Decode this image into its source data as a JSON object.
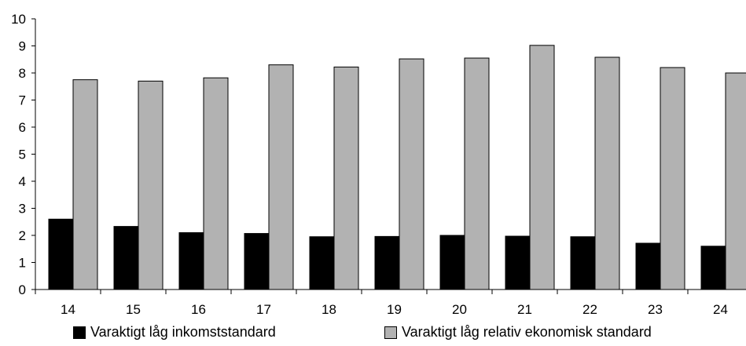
{
  "chart_data": {
    "type": "bar",
    "categories": [
      "14",
      "15",
      "16",
      "17",
      "18",
      "19",
      "20",
      "21",
      "22",
      "23",
      "24"
    ],
    "series": [
      {
        "name": "Varaktigt låg inkomststandard",
        "color": "#000000",
        "values": [
          2.6,
          2.33,
          2.1,
          2.07,
          1.95,
          1.96,
          2.0,
          1.97,
          1.95,
          1.71,
          1.6
        ]
      },
      {
        "name": "Varaktigt låg relativ ekonomisk standard",
        "color": "#b2b2b2",
        "values": [
          7.75,
          7.7,
          7.82,
          8.3,
          8.22,
          8.52,
          8.55,
          9.02,
          8.58,
          8.2,
          8.0
        ]
      }
    ],
    "ylim": [
      0,
      10
    ],
    "yticks": [
      "0",
      "1",
      "2",
      "3",
      "4",
      "5",
      "6",
      "7",
      "8",
      "9",
      "10"
    ],
    "grid": false,
    "legend_position": "bottom"
  }
}
